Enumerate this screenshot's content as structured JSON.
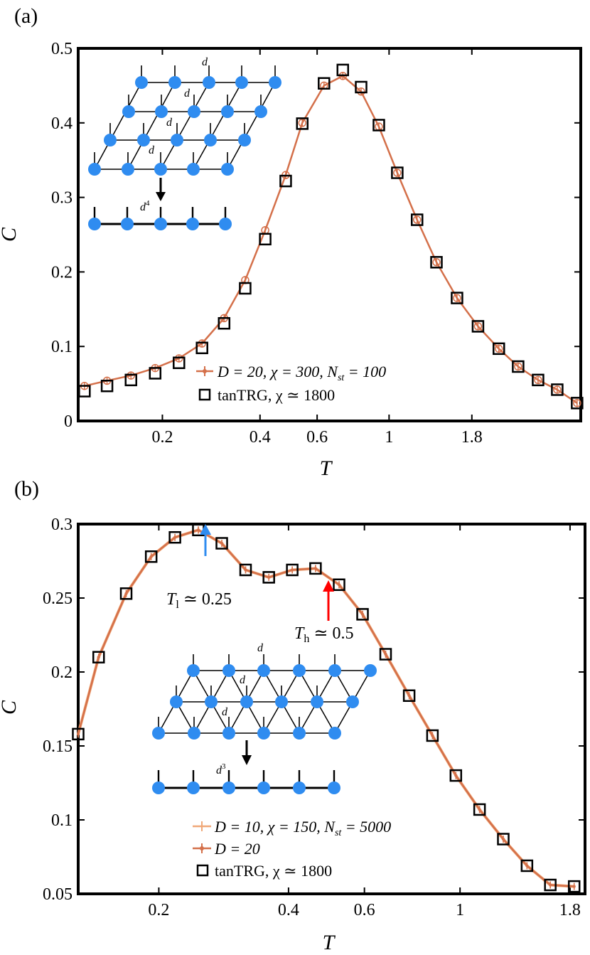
{
  "chart_data": [
    {
      "panel": "(a)",
      "type": "line",
      "xlabel": "T",
      "ylabel": "C",
      "ylim": [
        0,
        0.5
      ],
      "xscale": "log",
      "xlim": [
        0.11,
        3.9
      ],
      "xticks": [
        "0.2",
        "0.4",
        "0.6",
        "1",
        "1.8"
      ],
      "xtick_values": [
        0.2,
        0.4,
        0.6,
        1,
        1.8
      ],
      "yticks": [
        "0",
        "0.1",
        "0.2",
        "0.3",
        "0.4",
        "0.5"
      ],
      "ytick_values": [
        0,
        0.1,
        0.2,
        0.3,
        0.4,
        0.5
      ],
      "legend_position": "bottom-center",
      "inset_labels": [
        "d",
        "d",
        "d",
        "d",
        "d4"
      ],
      "series": [
        {
          "name": "D = 20, χ = 300, N_st = 100",
          "legend_label": "D = 20, χ = 300, N",
          "legend_sub": "st",
          "legend_tail": " = 100",
          "color": "#d4704a",
          "marker": "circle-errorbar",
          "x": [
            0.115,
            0.135,
            0.16,
            0.19,
            0.225,
            0.265,
            0.31,
            0.36,
            0.415,
            0.48,
            0.54,
            0.63,
            0.72,
            0.82,
            0.93,
            1.06,
            1.22,
            1.4,
            1.62,
            1.88,
            2.18,
            2.5,
            2.88,
            3.3,
            3.8
          ],
          "values": [
            0.047,
            0.054,
            0.061,
            0.071,
            0.084,
            0.104,
            0.138,
            0.189,
            0.256,
            0.33,
            0.4,
            0.45,
            0.463,
            0.442,
            0.395,
            0.333,
            0.27,
            0.213,
            0.165,
            0.127,
            0.097,
            0.073,
            0.055,
            0.042,
            0.024
          ]
        },
        {
          "name": "tanTRG, χ ≃ 1800",
          "legend_label": "tanTRG, χ ≃ 1800",
          "color": "#000000",
          "marker": "square",
          "x": [
            0.115,
            0.135,
            0.16,
            0.19,
            0.225,
            0.265,
            0.31,
            0.36,
            0.415,
            0.48,
            0.54,
            0.63,
            0.72,
            0.82,
            0.93,
            1.06,
            1.22,
            1.4,
            1.62,
            1.88,
            2.18,
            2.5,
            2.88,
            3.3,
            3.8
          ],
          "values": [
            0.04,
            0.047,
            0.055,
            0.064,
            0.078,
            0.098,
            0.131,
            0.178,
            0.244,
            0.322,
            0.399,
            0.453,
            0.471,
            0.448,
            0.397,
            0.333,
            0.27,
            0.213,
            0.165,
            0.127,
            0.097,
            0.073,
            0.055,
            0.042,
            0.024
          ]
        }
      ]
    },
    {
      "panel": "(b)",
      "type": "line",
      "xlabel": "T",
      "ylabel": "C",
      "ylim": [
        0.05,
        0.3
      ],
      "xscale": "log",
      "xlim": [
        0.13,
        1.95
      ],
      "xticks": [
        "0.2",
        "0.4",
        "0.6",
        "1",
        "1.8"
      ],
      "xtick_values": [
        0.2,
        0.4,
        0.6,
        1,
        1.8
      ],
      "yticks": [
        "0.05",
        "0.1",
        "0.15",
        "0.2",
        "0.25",
        "0.3"
      ],
      "ytick_values": [
        0.05,
        0.1,
        0.15,
        0.2,
        0.25,
        0.3
      ],
      "legend_position": "bottom-center",
      "inset_labels": [
        "d",
        "d",
        "d",
        "d3"
      ],
      "annotations": [
        {
          "text": "T",
          "sub": "l",
          "tail": " ≃ 0.25",
          "x": 0.25,
          "color": "#2f8cf0"
        },
        {
          "text": "T",
          "sub": "h",
          "tail": " ≃ 0.5",
          "x": 0.5,
          "color": "#ff0000"
        }
      ],
      "series": [
        {
          "name": "D = 10, χ = 150, N_st = 5000",
          "legend_label": "D = 10, χ = 150, N",
          "legend_sub": "st",
          "legend_tail": " = 5000",
          "color": "#f0a878",
          "marker": "errorbar",
          "x": [
            0.13,
            0.145,
            0.168,
            0.192,
            0.218,
            0.247,
            0.28,
            0.318,
            0.36,
            0.408,
            0.462,
            0.524,
            0.594,
            0.672,
            0.762,
            0.863,
            0.978,
            1.11,
            1.26,
            1.43,
            1.62,
            1.84
          ],
          "values": [
            0.158,
            0.21,
            0.253,
            0.278,
            0.291,
            0.296,
            0.287,
            0.269,
            0.264,
            0.269,
            0.27,
            0.259,
            0.239,
            0.212,
            0.184,
            0.157,
            0.13,
            0.107,
            0.087,
            0.069,
            0.056,
            0.055
          ]
        },
        {
          "name": "D = 20",
          "legend_label": "D = 20",
          "color": "#d4704a",
          "marker": "errorbar",
          "x": [
            0.13,
            0.145,
            0.168,
            0.192,
            0.218,
            0.247,
            0.28,
            0.318,
            0.36,
            0.408,
            0.462,
            0.524,
            0.594,
            0.672,
            0.762,
            0.863,
            0.978,
            1.11,
            1.26,
            1.43,
            1.62,
            1.84
          ],
          "values": [
            0.158,
            0.21,
            0.253,
            0.278,
            0.291,
            0.296,
            0.287,
            0.269,
            0.264,
            0.269,
            0.27,
            0.259,
            0.239,
            0.212,
            0.184,
            0.157,
            0.13,
            0.107,
            0.087,
            0.069,
            0.056,
            0.055
          ]
        },
        {
          "name": "tanTRG, χ ≃ 1800",
          "legend_label": "tanTRG, χ ≃ 1800",
          "color": "#000000",
          "marker": "square",
          "x": [
            0.13,
            0.145,
            0.168,
            0.192,
            0.218,
            0.247,
            0.28,
            0.318,
            0.36,
            0.408,
            0.462,
            0.524,
            0.594,
            0.672,
            0.762,
            0.863,
            0.978,
            1.11,
            1.26,
            1.43,
            1.62,
            1.84
          ],
          "values": [
            0.158,
            0.21,
            0.253,
            0.278,
            0.291,
            0.296,
            0.287,
            0.269,
            0.264,
            0.269,
            0.27,
            0.259,
            0.239,
            0.212,
            0.184,
            0.157,
            0.13,
            0.107,
            0.087,
            0.069,
            0.056,
            0.055
          ]
        }
      ]
    }
  ]
}
